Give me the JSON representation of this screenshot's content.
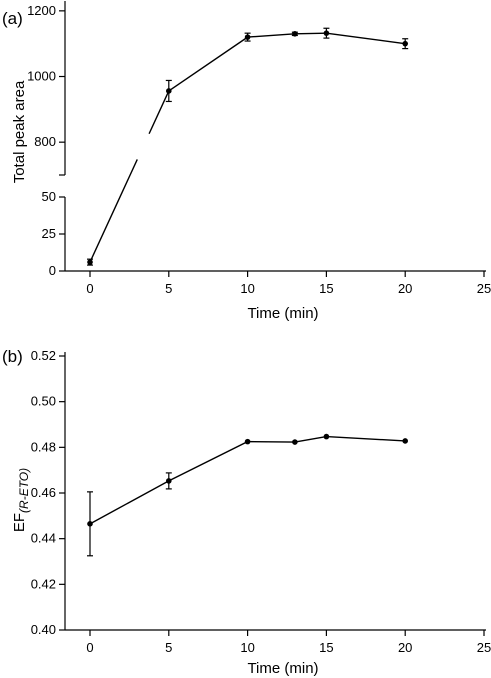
{
  "chart_data": [
    {
      "type": "line",
      "panel_label": "(a)",
      "xlabel": "Time (min)",
      "ylabel": "Total peak area",
      "xlim": [
        -1.5,
        25
      ],
      "x_ticks": [
        0,
        5,
        10,
        15,
        20,
        25
      ],
      "y_axis_broken": true,
      "y_upper_ticks": [
        800,
        1000,
        1200
      ],
      "y_upper_range": [
        700,
        1230
      ],
      "y_lower_ticks": [
        0,
        25,
        50
      ],
      "y_lower_range": [
        0,
        50
      ],
      "grid": false,
      "series": [
        {
          "x": [
            0,
            5,
            10,
            13,
            15,
            20
          ],
          "y": [
            6,
            956,
            1120,
            1130,
            1132,
            1100
          ],
          "err": [
            2,
            32,
            12,
            5,
            15,
            15
          ]
        }
      ]
    },
    {
      "type": "line",
      "panel_label": "(b)",
      "xlabel": "Time (min)",
      "ylabel_main": "EF",
      "ylabel_sub": "(R-ETO)",
      "xlim": [
        -1.5,
        25
      ],
      "x_ticks": [
        0,
        5,
        10,
        15,
        20,
        25
      ],
      "ylim": [
        0.4,
        0.52
      ],
      "y_ticks": [
        0.4,
        0.42,
        0.44,
        0.46,
        0.48,
        0.5,
        0.52
      ],
      "grid": false,
      "series": [
        {
          "x": [
            0,
            5,
            10,
            13,
            15,
            20
          ],
          "y": [
            0.4465,
            0.4653,
            0.4825,
            0.4823,
            0.4847,
            0.4828
          ],
          "err": [
            0.014,
            0.0035,
            0,
            0,
            0,
            0
          ]
        }
      ]
    }
  ]
}
